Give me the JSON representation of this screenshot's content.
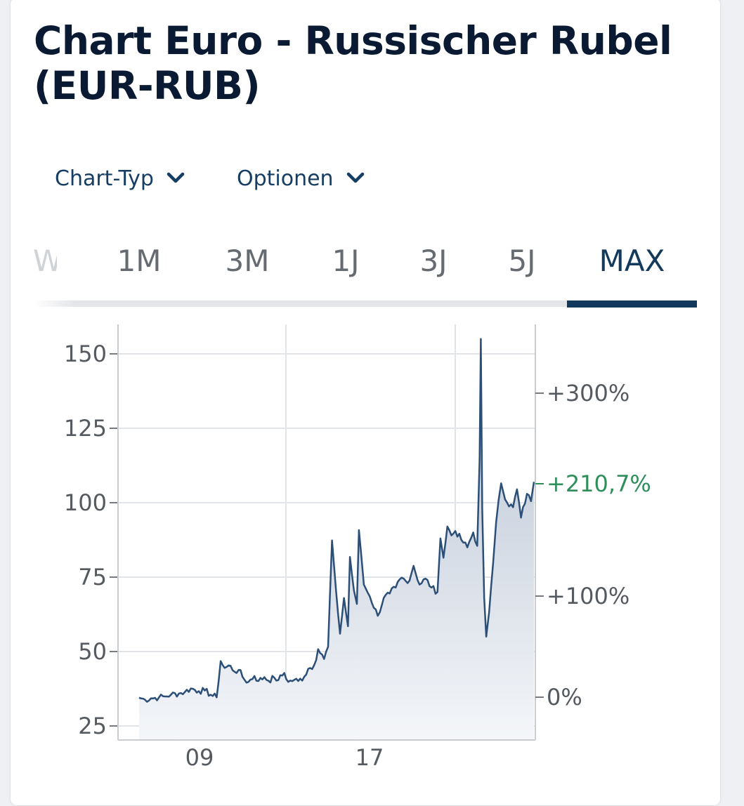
{
  "page": {
    "title": "Chart Euro - Russischer Rubel (EUR-RUB)"
  },
  "toolbar": {
    "chart_type_label": "Chart-Typ",
    "options_label": "Optionen",
    "icon": "chevron-down-icon"
  },
  "tabs": [
    {
      "label": "W",
      "partial": true
    },
    {
      "label": "1M"
    },
    {
      "label": "3M"
    },
    {
      "label": "1J"
    },
    {
      "label": "3J"
    },
    {
      "label": "5J"
    },
    {
      "label": "MAX",
      "active": true
    }
  ],
  "colors": {
    "accent": "#133a5c",
    "line": "#2c4f78",
    "positive": "#2f8f5b"
  },
  "chart_data": {
    "type": "area",
    "title": "",
    "xlabel": "",
    "ylabel": "",
    "x_ticks": [
      "09"
    ],
    "ylim": [
      25,
      155
    ],
    "y_ticks": [
      25,
      50,
      75,
      100,
      125,
      150
    ],
    "grid": true,
    "x": [
      2005.0,
      2005.3,
      2005.6,
      2006.0,
      2006.3,
      2006.6,
      2007.0,
      2007.3,
      2007.6,
      2008.0,
      2008.3,
      2008.6,
      2008.9,
      2009.1,
      2009.3,
      2009.6,
      2009.8,
      2010.0,
      2010.3,
      2010.5,
      2010.8,
      2011.0,
      2011.3,
      2011.5,
      2011.8,
      2012.0,
      2012.3,
      2012.5,
      2012.8,
      2013.0,
      2013.3,
      2013.5,
      2013.8,
      2014.0,
      2014.3,
      2014.5,
      2014.7,
      2014.9,
      2015.0,
      2015.1,
      2015.3,
      2015.5,
      2015.6,
      2015.8,
      2015.95,
      2016.05,
      2016.3,
      2016.6,
      2017.0,
      2017.3,
      2017.6,
      2017.9,
      2018.2,
      2018.5,
      2018.8,
      2019.1,
      2019.4,
      2019.7,
      2020.0,
      2020.15,
      2020.3,
      2020.5,
      2020.7,
      2020.9,
      2021.2,
      2021.5,
      2021.8,
      2022.0,
      2022.12,
      2022.18,
      2022.25,
      2022.35,
      2022.45,
      2022.6,
      2022.8,
      2022.95,
      2023.2,
      2023.5,
      2023.8,
      2024.0,
      2024.2,
      2024.5,
      2024.7,
      2024.85
    ],
    "series": [
      {
        "values": [
          34.5,
          33.8,
          34.3,
          34.6,
          34.9,
          35.5,
          35.9,
          36.4,
          37.6,
          36.7,
          36.9,
          35.5,
          34.6,
          46.8,
          44.5,
          45.2,
          43.2,
          43.8,
          40.5,
          39.8,
          41.8,
          40.1,
          41.4,
          40.2,
          41.2,
          40.4,
          42.8,
          39.8,
          40.5,
          40.1,
          41.5,
          44.2,
          45.4,
          50.8,
          47.5,
          51.6,
          87.3,
          70.5,
          63.0,
          56.0,
          68.0,
          58.5,
          81.8,
          70.5,
          66.0,
          90.8,
          72.5,
          68.5,
          62.0,
          68.0,
          69.5,
          71.5,
          74.8,
          73.0,
          78.8,
          72.5,
          74.5,
          71.5,
          70.0,
          88.0,
          81.5,
          92.0,
          89.0,
          90.5,
          87.5,
          85.0,
          90.0,
          85.5,
          115.0,
          155.0,
          98.0,
          68.0,
          55.0,
          63.5,
          80.0,
          93.5,
          106.5,
          100.0,
          98.5,
          104.5,
          95.0,
          103.0,
          100.5,
          107.0
        ]
      }
    ],
    "secondary_axis_labels": [
      "+300%",
      "+210,7%",
      "+100%",
      "0%"
    ],
    "current_change": "+210,7%"
  }
}
